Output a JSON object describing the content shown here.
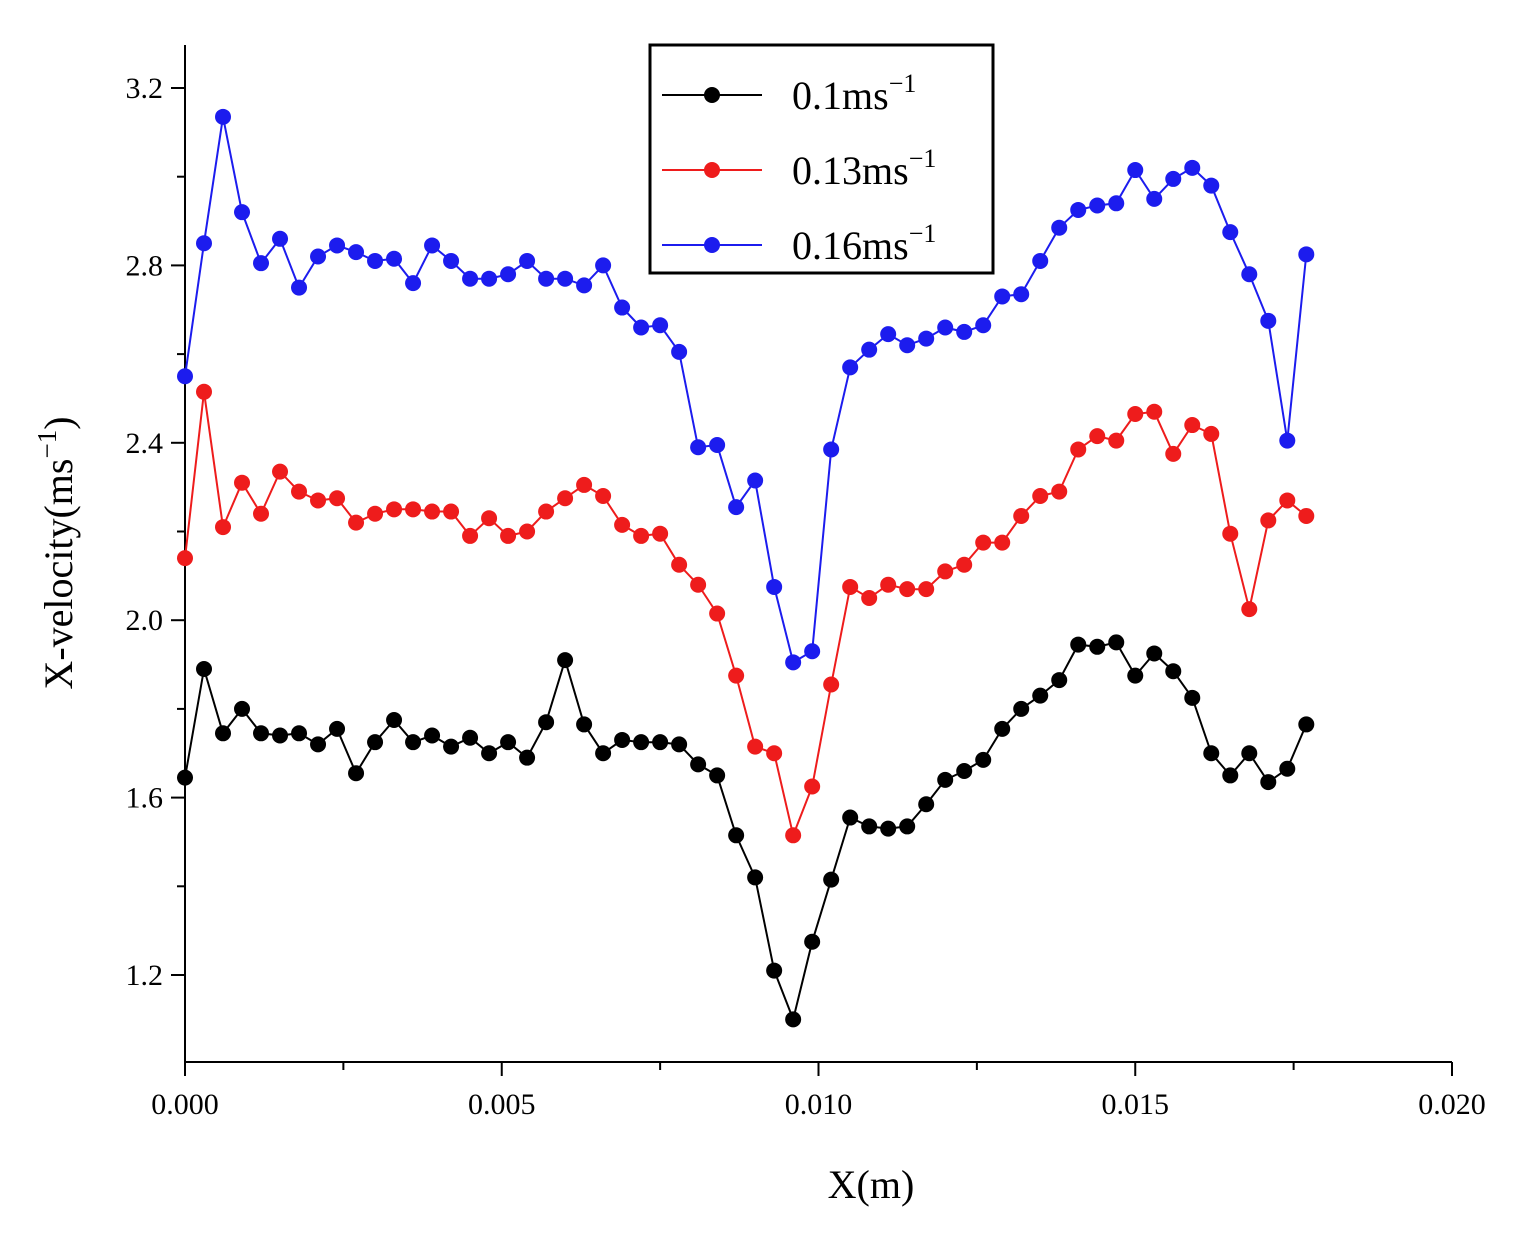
{
  "chart_data": {
    "type": "line",
    "title": "",
    "xlabel": "X(m)",
    "ylabel": {
      "base": "X-velocity(ms",
      "sup": "−1",
      "close": ")"
    },
    "xlim": [
      0.0,
      0.02
    ],
    "ylim": [
      1.05,
      3.3
    ],
    "x_ticks": [
      "0.000",
      "0.005",
      "0.010",
      "0.015",
      "0.020"
    ],
    "x_tick_values": [
      0.0,
      0.005,
      0.01,
      0.015,
      0.02
    ],
    "x_minor_step": 0.0025,
    "y_ticks": [
      "1.2",
      "1.6",
      "2.0",
      "2.4",
      "2.8",
      "3.2"
    ],
    "y_tick_values": [
      1.2,
      1.6,
      2.0,
      2.4,
      2.8,
      3.2
    ],
    "y_minor_step": 0.2,
    "grid": false,
    "legend_position": "top-center",
    "x": [
      0.0,
      0.0003,
      0.0006,
      0.0009,
      0.0012,
      0.0015,
      0.0018,
      0.0021,
      0.0024,
      0.0027,
      0.003,
      0.0033,
      0.0036,
      0.0039,
      0.0042,
      0.0045,
      0.0048,
      0.0051,
      0.0054,
      0.0057,
      0.006,
      0.0063,
      0.0066,
      0.0069,
      0.0072,
      0.0075,
      0.0078,
      0.0081,
      0.0084,
      0.0087,
      0.009,
      0.0093,
      0.0096,
      0.0099,
      0.0102,
      0.0105,
      0.0108,
      0.0111,
      0.0114,
      0.0117,
      0.012,
      0.0123,
      0.0126,
      0.0129,
      0.0132,
      0.0135,
      0.0138,
      0.0141,
      0.0144,
      0.0147,
      0.015,
      0.0153,
      0.0156,
      0.0159,
      0.0162,
      0.0165,
      0.0168,
      0.0171,
      0.0174,
      0.0177
    ],
    "series": [
      {
        "name": "0.1ms",
        "sup": "−1",
        "color": "#000000",
        "values": [
          1.645,
          1.89,
          1.745,
          1.8,
          1.745,
          1.74,
          1.745,
          1.72,
          1.755,
          1.655,
          1.725,
          1.775,
          1.725,
          1.74,
          1.715,
          1.735,
          1.7,
          1.725,
          1.69,
          1.77,
          1.91,
          1.765,
          1.7,
          1.73,
          1.725,
          1.725,
          1.72,
          1.675,
          1.65,
          1.515,
          1.42,
          1.21,
          1.1,
          1.275,
          1.415,
          1.555,
          1.535,
          1.53,
          1.535,
          1.585,
          1.64,
          1.66,
          1.685,
          1.755,
          1.8,
          1.83,
          1.865,
          1.945,
          1.94,
          1.95,
          1.875,
          1.925,
          1.885,
          1.825,
          1.7,
          1.65,
          1.7,
          1.635,
          1.665,
          1.765
        ]
      },
      {
        "name": "0.13ms",
        "sup": "−1",
        "color": "#ee1c1c",
        "values": [
          2.14,
          2.515,
          2.21,
          2.31,
          2.24,
          2.335,
          2.29,
          2.27,
          2.275,
          2.22,
          2.24,
          2.25,
          2.25,
          2.245,
          2.245,
          2.19,
          2.23,
          2.19,
          2.2,
          2.245,
          2.275,
          2.305,
          2.28,
          2.215,
          2.19,
          2.195,
          2.125,
          2.08,
          2.015,
          1.875,
          1.715,
          1.7,
          1.515,
          1.625,
          1.855,
          2.075,
          2.05,
          2.08,
          2.07,
          2.07,
          2.11,
          2.125,
          2.175,
          2.175,
          2.235,
          2.28,
          2.29,
          2.385,
          2.415,
          2.405,
          2.465,
          2.47,
          2.375,
          2.44,
          2.42,
          2.195,
          2.025,
          2.225,
          2.27,
          2.235
        ]
      },
      {
        "name": "0.16ms",
        "sup": "−1",
        "color": "#1c1cee",
        "values": [
          2.55,
          2.85,
          3.135,
          2.92,
          2.805,
          2.86,
          2.75,
          2.82,
          2.845,
          2.83,
          2.81,
          2.815,
          2.76,
          2.845,
          2.81,
          2.77,
          2.77,
          2.78,
          2.81,
          2.77,
          2.77,
          2.755,
          2.8,
          2.705,
          2.66,
          2.665,
          2.605,
          2.39,
          2.395,
          2.255,
          2.315,
          2.075,
          1.905,
          1.93,
          2.385,
          2.57,
          2.61,
          2.645,
          2.62,
          2.635,
          2.66,
          2.65,
          2.665,
          2.73,
          2.735,
          2.81,
          2.885,
          2.925,
          2.935,
          2.94,
          3.015,
          2.95,
          2.995,
          3.02,
          2.98,
          2.875,
          2.78,
          2.675,
          2.405,
          2.825
        ]
      }
    ]
  }
}
